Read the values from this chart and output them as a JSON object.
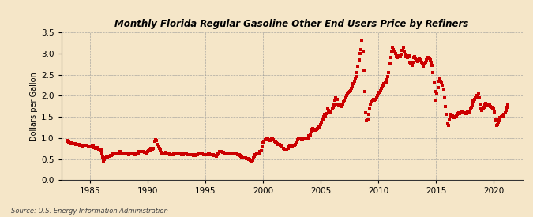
{
  "title": "Monthly Florida Regular Gasoline Other End Users Price by Refiners",
  "ylabel": "Dollars per Gallon",
  "source": "Source: U.S. Energy Information Administration",
  "background_color": "#f5e6c8",
  "plot_bg_color": "#f5e6c8",
  "line_color": "#cc0000",
  "marker": "s",
  "marker_size": 2.2,
  "xlim": [
    1982.5,
    2022.5
  ],
  "ylim": [
    0.0,
    3.5
  ],
  "yticks": [
    0.0,
    0.5,
    1.0,
    1.5,
    2.0,
    2.5,
    3.0,
    3.5
  ],
  "xticks": [
    1985,
    1990,
    1995,
    2000,
    2005,
    2010,
    2015,
    2020
  ],
  "data": [
    [
      1983.0,
      0.94
    ],
    [
      1983.08,
      0.92
    ],
    [
      1983.17,
      0.91
    ],
    [
      1983.25,
      0.89
    ],
    [
      1983.33,
      0.87
    ],
    [
      1983.42,
      0.88
    ],
    [
      1983.5,
      0.87
    ],
    [
      1983.58,
      0.86
    ],
    [
      1983.67,
      0.87
    ],
    [
      1983.75,
      0.85
    ],
    [
      1983.83,
      0.85
    ],
    [
      1983.92,
      0.84
    ],
    [
      1984.0,
      0.84
    ],
    [
      1984.08,
      0.83
    ],
    [
      1984.17,
      0.83
    ],
    [
      1984.25,
      0.82
    ],
    [
      1984.33,
      0.81
    ],
    [
      1984.42,
      0.82
    ],
    [
      1984.5,
      0.82
    ],
    [
      1984.58,
      0.83
    ],
    [
      1984.67,
      0.82
    ],
    [
      1984.75,
      0.82
    ],
    [
      1984.83,
      0.8
    ],
    [
      1984.92,
      0.79
    ],
    [
      1985.0,
      0.8
    ],
    [
      1985.08,
      0.8
    ],
    [
      1985.17,
      0.81
    ],
    [
      1985.25,
      0.81
    ],
    [
      1985.33,
      0.78
    ],
    [
      1985.42,
      0.77
    ],
    [
      1985.5,
      0.76
    ],
    [
      1985.58,
      0.77
    ],
    [
      1985.67,
      0.76
    ],
    [
      1985.75,
      0.74
    ],
    [
      1985.83,
      0.73
    ],
    [
      1985.92,
      0.72
    ],
    [
      1986.0,
      0.64
    ],
    [
      1986.08,
      0.54
    ],
    [
      1986.17,
      0.46
    ],
    [
      1986.25,
      0.5
    ],
    [
      1986.33,
      0.52
    ],
    [
      1986.42,
      0.54
    ],
    [
      1986.5,
      0.55
    ],
    [
      1986.58,
      0.56
    ],
    [
      1986.67,
      0.57
    ],
    [
      1986.75,
      0.58
    ],
    [
      1986.83,
      0.59
    ],
    [
      1986.92,
      0.6
    ],
    [
      1987.0,
      0.62
    ],
    [
      1987.08,
      0.63
    ],
    [
      1987.17,
      0.64
    ],
    [
      1987.25,
      0.65
    ],
    [
      1987.33,
      0.65
    ],
    [
      1987.42,
      0.64
    ],
    [
      1987.5,
      0.65
    ],
    [
      1987.58,
      0.67
    ],
    [
      1987.67,
      0.66
    ],
    [
      1987.75,
      0.65
    ],
    [
      1987.83,
      0.65
    ],
    [
      1987.92,
      0.64
    ],
    [
      1988.0,
      0.64
    ],
    [
      1988.08,
      0.63
    ],
    [
      1988.17,
      0.63
    ],
    [
      1988.25,
      0.62
    ],
    [
      1988.33,
      0.61
    ],
    [
      1988.42,
      0.62
    ],
    [
      1988.5,
      0.63
    ],
    [
      1988.58,
      0.63
    ],
    [
      1988.67,
      0.62
    ],
    [
      1988.75,
      0.62
    ],
    [
      1988.83,
      0.61
    ],
    [
      1988.92,
      0.6
    ],
    [
      1989.0,
      0.62
    ],
    [
      1989.08,
      0.63
    ],
    [
      1989.17,
      0.65
    ],
    [
      1989.25,
      0.68
    ],
    [
      1989.33,
      0.68
    ],
    [
      1989.42,
      0.67
    ],
    [
      1989.5,
      0.67
    ],
    [
      1989.58,
      0.67
    ],
    [
      1989.67,
      0.67
    ],
    [
      1989.75,
      0.66
    ],
    [
      1989.83,
      0.65
    ],
    [
      1989.92,
      0.64
    ],
    [
      1990.0,
      0.68
    ],
    [
      1990.08,
      0.7
    ],
    [
      1990.17,
      0.72
    ],
    [
      1990.25,
      0.75
    ],
    [
      1990.33,
      0.74
    ],
    [
      1990.42,
      0.74
    ],
    [
      1990.5,
      0.76
    ],
    [
      1990.58,
      0.93
    ],
    [
      1990.67,
      0.96
    ],
    [
      1990.75,
      0.94
    ],
    [
      1990.83,
      0.85
    ],
    [
      1990.92,
      0.8
    ],
    [
      1991.0,
      0.75
    ],
    [
      1991.08,
      0.71
    ],
    [
      1991.17,
      0.66
    ],
    [
      1991.25,
      0.65
    ],
    [
      1991.33,
      0.63
    ],
    [
      1991.42,
      0.63
    ],
    [
      1991.5,
      0.65
    ],
    [
      1991.58,
      0.66
    ],
    [
      1991.67,
      0.65
    ],
    [
      1991.75,
      0.63
    ],
    [
      1991.83,
      0.62
    ],
    [
      1991.92,
      0.6
    ],
    [
      1992.0,
      0.6
    ],
    [
      1992.08,
      0.6
    ],
    [
      1992.17,
      0.61
    ],
    [
      1992.25,
      0.62
    ],
    [
      1992.33,
      0.62
    ],
    [
      1992.42,
      0.63
    ],
    [
      1992.5,
      0.64
    ],
    [
      1992.58,
      0.64
    ],
    [
      1992.67,
      0.63
    ],
    [
      1992.75,
      0.62
    ],
    [
      1992.83,
      0.62
    ],
    [
      1992.92,
      0.61
    ],
    [
      1993.0,
      0.61
    ],
    [
      1993.08,
      0.61
    ],
    [
      1993.17,
      0.62
    ],
    [
      1993.25,
      0.63
    ],
    [
      1993.33,
      0.62
    ],
    [
      1993.42,
      0.61
    ],
    [
      1993.5,
      0.61
    ],
    [
      1993.58,
      0.61
    ],
    [
      1993.67,
      0.61
    ],
    [
      1993.75,
      0.6
    ],
    [
      1993.83,
      0.6
    ],
    [
      1993.92,
      0.6
    ],
    [
      1994.0,
      0.59
    ],
    [
      1994.08,
      0.59
    ],
    [
      1994.17,
      0.6
    ],
    [
      1994.25,
      0.61
    ],
    [
      1994.33,
      0.61
    ],
    [
      1994.42,
      0.62
    ],
    [
      1994.5,
      0.63
    ],
    [
      1994.58,
      0.63
    ],
    [
      1994.67,
      0.62
    ],
    [
      1994.75,
      0.62
    ],
    [
      1994.83,
      0.61
    ],
    [
      1994.92,
      0.6
    ],
    [
      1995.0,
      0.6
    ],
    [
      1995.08,
      0.6
    ],
    [
      1995.17,
      0.61
    ],
    [
      1995.25,
      0.63
    ],
    [
      1995.33,
      0.62
    ],
    [
      1995.42,
      0.61
    ],
    [
      1995.5,
      0.6
    ],
    [
      1995.58,
      0.6
    ],
    [
      1995.67,
      0.6
    ],
    [
      1995.75,
      0.59
    ],
    [
      1995.83,
      0.58
    ],
    [
      1995.92,
      0.57
    ],
    [
      1996.0,
      0.6
    ],
    [
      1996.08,
      0.62
    ],
    [
      1996.17,
      0.65
    ],
    [
      1996.25,
      0.68
    ],
    [
      1996.33,
      0.68
    ],
    [
      1996.42,
      0.67
    ],
    [
      1996.5,
      0.66
    ],
    [
      1996.58,
      0.66
    ],
    [
      1996.67,
      0.65
    ],
    [
      1996.75,
      0.65
    ],
    [
      1996.83,
      0.64
    ],
    [
      1996.92,
      0.63
    ],
    [
      1997.0,
      0.63
    ],
    [
      1997.08,
      0.63
    ],
    [
      1997.17,
      0.64
    ],
    [
      1997.25,
      0.65
    ],
    [
      1997.33,
      0.65
    ],
    [
      1997.42,
      0.65
    ],
    [
      1997.5,
      0.65
    ],
    [
      1997.58,
      0.63
    ],
    [
      1997.67,
      0.62
    ],
    [
      1997.75,
      0.62
    ],
    [
      1997.83,
      0.61
    ],
    [
      1997.92,
      0.6
    ],
    [
      1998.0,
      0.58
    ],
    [
      1998.08,
      0.56
    ],
    [
      1998.17,
      0.54
    ],
    [
      1998.25,
      0.53
    ],
    [
      1998.33,
      0.52
    ],
    [
      1998.42,
      0.52
    ],
    [
      1998.5,
      0.52
    ],
    [
      1998.58,
      0.51
    ],
    [
      1998.67,
      0.51
    ],
    [
      1998.75,
      0.5
    ],
    [
      1998.83,
      0.49
    ],
    [
      1998.92,
      0.47
    ],
    [
      1999.0,
      0.46
    ],
    [
      1999.08,
      0.48
    ],
    [
      1999.17,
      0.52
    ],
    [
      1999.25,
      0.57
    ],
    [
      1999.33,
      0.6
    ],
    [
      1999.42,
      0.62
    ],
    [
      1999.5,
      0.64
    ],
    [
      1999.58,
      0.65
    ],
    [
      1999.67,
      0.65
    ],
    [
      1999.75,
      0.67
    ],
    [
      1999.83,
      0.7
    ],
    [
      1999.92,
      0.8
    ],
    [
      2000.0,
      0.88
    ],
    [
      2000.08,
      0.93
    ],
    [
      2000.17,
      0.96
    ],
    [
      2000.25,
      0.97
    ],
    [
      2000.33,
      0.97
    ],
    [
      2000.42,
      0.97
    ],
    [
      2000.5,
      0.95
    ],
    [
      2000.58,
      0.94
    ],
    [
      2000.67,
      0.95
    ],
    [
      2000.75,
      0.97
    ],
    [
      2000.83,
      0.99
    ],
    [
      2000.92,
      0.95
    ],
    [
      2001.0,
      0.92
    ],
    [
      2001.08,
      0.9
    ],
    [
      2001.17,
      0.88
    ],
    [
      2001.25,
      0.86
    ],
    [
      2001.33,
      0.84
    ],
    [
      2001.42,
      0.84
    ],
    [
      2001.5,
      0.83
    ],
    [
      2001.58,
      0.83
    ],
    [
      2001.67,
      0.81
    ],
    [
      2001.75,
      0.75
    ],
    [
      2001.83,
      0.74
    ],
    [
      2001.92,
      0.73
    ],
    [
      2002.0,
      0.73
    ],
    [
      2002.08,
      0.74
    ],
    [
      2002.17,
      0.76
    ],
    [
      2002.25,
      0.8
    ],
    [
      2002.33,
      0.82
    ],
    [
      2002.42,
      0.82
    ],
    [
      2002.5,
      0.81
    ],
    [
      2002.58,
      0.82
    ],
    [
      2002.67,
      0.82
    ],
    [
      2002.75,
      0.83
    ],
    [
      2002.83,
      0.85
    ],
    [
      2002.92,
      0.88
    ],
    [
      2003.0,
      0.95
    ],
    [
      2003.08,
      1.0
    ],
    [
      2003.17,
      1.0
    ],
    [
      2003.25,
      0.98
    ],
    [
      2003.33,
      0.96
    ],
    [
      2003.42,
      0.96
    ],
    [
      2003.5,
      0.97
    ],
    [
      2003.58,
      0.98
    ],
    [
      2003.67,
      0.97
    ],
    [
      2003.75,
      0.97
    ],
    [
      2003.83,
      0.98
    ],
    [
      2003.92,
      1.0
    ],
    [
      2004.0,
      1.05
    ],
    [
      2004.08,
      1.08
    ],
    [
      2004.17,
      1.15
    ],
    [
      2004.25,
      1.2
    ],
    [
      2004.33,
      1.22
    ],
    [
      2004.42,
      1.2
    ],
    [
      2004.5,
      1.18
    ],
    [
      2004.58,
      1.18
    ],
    [
      2004.67,
      1.2
    ],
    [
      2004.75,
      1.22
    ],
    [
      2004.83,
      1.25
    ],
    [
      2004.92,
      1.28
    ],
    [
      2005.0,
      1.32
    ],
    [
      2005.08,
      1.38
    ],
    [
      2005.17,
      1.45
    ],
    [
      2005.25,
      1.5
    ],
    [
      2005.33,
      1.55
    ],
    [
      2005.42,
      1.52
    ],
    [
      2005.5,
      1.58
    ],
    [
      2005.58,
      1.7
    ],
    [
      2005.67,
      1.65
    ],
    [
      2005.75,
      1.62
    ],
    [
      2005.83,
      1.6
    ],
    [
      2005.92,
      1.62
    ],
    [
      2006.0,
      1.68
    ],
    [
      2006.08,
      1.72
    ],
    [
      2006.17,
      1.78
    ],
    [
      2006.25,
      1.9
    ],
    [
      2006.33,
      1.95
    ],
    [
      2006.42,
      1.92
    ],
    [
      2006.5,
      1.8
    ],
    [
      2006.58,
      1.78
    ],
    [
      2006.67,
      1.78
    ],
    [
      2006.75,
      1.75
    ],
    [
      2006.83,
      1.75
    ],
    [
      2006.92,
      1.8
    ],
    [
      2007.0,
      1.85
    ],
    [
      2007.08,
      1.9
    ],
    [
      2007.17,
      1.95
    ],
    [
      2007.25,
      2.0
    ],
    [
      2007.33,
      2.05
    ],
    [
      2007.42,
      2.08
    ],
    [
      2007.5,
      2.1
    ],
    [
      2007.58,
      2.12
    ],
    [
      2007.67,
      2.18
    ],
    [
      2007.75,
      2.22
    ],
    [
      2007.83,
      2.28
    ],
    [
      2007.92,
      2.35
    ],
    [
      2008.0,
      2.4
    ],
    [
      2008.08,
      2.45
    ],
    [
      2008.17,
      2.55
    ],
    [
      2008.25,
      2.7
    ],
    [
      2008.33,
      2.85
    ],
    [
      2008.42,
      3.0
    ],
    [
      2008.5,
      3.1
    ],
    [
      2008.58,
      3.32
    ],
    [
      2008.67,
      3.05
    ],
    [
      2008.75,
      2.6
    ],
    [
      2008.83,
      2.1
    ],
    [
      2008.92,
      1.6
    ],
    [
      2009.0,
      1.4
    ],
    [
      2009.08,
      1.45
    ],
    [
      2009.17,
      1.55
    ],
    [
      2009.25,
      1.7
    ],
    [
      2009.33,
      1.8
    ],
    [
      2009.42,
      1.85
    ],
    [
      2009.5,
      1.9
    ],
    [
      2009.58,
      1.92
    ],
    [
      2009.67,
      1.9
    ],
    [
      2009.75,
      1.92
    ],
    [
      2009.83,
      1.95
    ],
    [
      2009.92,
      2.0
    ],
    [
      2010.0,
      2.05
    ],
    [
      2010.08,
      2.08
    ],
    [
      2010.17,
      2.12
    ],
    [
      2010.25,
      2.18
    ],
    [
      2010.33,
      2.22
    ],
    [
      2010.42,
      2.25
    ],
    [
      2010.5,
      2.28
    ],
    [
      2010.58,
      2.3
    ],
    [
      2010.67,
      2.32
    ],
    [
      2010.75,
      2.38
    ],
    [
      2010.83,
      2.45
    ],
    [
      2010.92,
      2.55
    ],
    [
      2011.0,
      2.75
    ],
    [
      2011.08,
      2.9
    ],
    [
      2011.17,
      3.05
    ],
    [
      2011.25,
      3.15
    ],
    [
      2011.33,
      3.1
    ],
    [
      2011.42,
      3.05
    ],
    [
      2011.5,
      3.0
    ],
    [
      2011.58,
      2.95
    ],
    [
      2011.67,
      2.9
    ],
    [
      2011.75,
      2.92
    ],
    [
      2011.83,
      2.95
    ],
    [
      2011.92,
      2.95
    ],
    [
      2012.0,
      2.98
    ],
    [
      2012.08,
      3.08
    ],
    [
      2012.17,
      3.15
    ],
    [
      2012.25,
      3.05
    ],
    [
      2012.33,
      2.98
    ],
    [
      2012.42,
      2.95
    ],
    [
      2012.5,
      2.9
    ],
    [
      2012.58,
      2.92
    ],
    [
      2012.67,
      2.95
    ],
    [
      2012.75,
      2.8
    ],
    [
      2012.83,
      2.78
    ],
    [
      2012.92,
      2.72
    ],
    [
      2013.0,
      2.8
    ],
    [
      2013.08,
      2.9
    ],
    [
      2013.17,
      2.92
    ],
    [
      2013.25,
      2.88
    ],
    [
      2013.33,
      2.85
    ],
    [
      2013.42,
      2.82
    ],
    [
      2013.5,
      2.85
    ],
    [
      2013.58,
      2.88
    ],
    [
      2013.67,
      2.85
    ],
    [
      2013.75,
      2.8
    ],
    [
      2013.83,
      2.75
    ],
    [
      2013.92,
      2.7
    ],
    [
      2014.0,
      2.75
    ],
    [
      2014.08,
      2.8
    ],
    [
      2014.17,
      2.85
    ],
    [
      2014.25,
      2.9
    ],
    [
      2014.33,
      2.9
    ],
    [
      2014.42,
      2.88
    ],
    [
      2014.5,
      2.85
    ],
    [
      2014.58,
      2.8
    ],
    [
      2014.67,
      2.72
    ],
    [
      2014.75,
      2.55
    ],
    [
      2014.83,
      2.3
    ],
    [
      2014.92,
      2.1
    ],
    [
      2015.0,
      1.9
    ],
    [
      2015.08,
      2.05
    ],
    [
      2015.17,
      2.2
    ],
    [
      2015.25,
      2.35
    ],
    [
      2015.33,
      2.4
    ],
    [
      2015.42,
      2.35
    ],
    [
      2015.5,
      2.3
    ],
    [
      2015.58,
      2.25
    ],
    [
      2015.67,
      2.15
    ],
    [
      2015.75,
      1.95
    ],
    [
      2015.83,
      1.75
    ],
    [
      2015.92,
      1.55
    ],
    [
      2016.0,
      1.35
    ],
    [
      2016.08,
      1.3
    ],
    [
      2016.17,
      1.45
    ],
    [
      2016.25,
      1.52
    ],
    [
      2016.33,
      1.55
    ],
    [
      2016.42,
      1.52
    ],
    [
      2016.5,
      1.5
    ],
    [
      2016.58,
      1.48
    ],
    [
      2016.67,
      1.5
    ],
    [
      2016.75,
      1.52
    ],
    [
      2016.83,
      1.55
    ],
    [
      2016.92,
      1.58
    ],
    [
      2017.0,
      1.6
    ],
    [
      2017.08,
      1.58
    ],
    [
      2017.17,
      1.6
    ],
    [
      2017.25,
      1.62
    ],
    [
      2017.33,
      1.62
    ],
    [
      2017.42,
      1.6
    ],
    [
      2017.5,
      1.58
    ],
    [
      2017.58,
      1.6
    ],
    [
      2017.67,
      1.58
    ],
    [
      2017.75,
      1.62
    ],
    [
      2017.83,
      1.6
    ],
    [
      2017.92,
      1.62
    ],
    [
      2018.0,
      1.68
    ],
    [
      2018.08,
      1.72
    ],
    [
      2018.17,
      1.78
    ],
    [
      2018.25,
      1.88
    ],
    [
      2018.33,
      1.92
    ],
    [
      2018.42,
      1.95
    ],
    [
      2018.5,
      1.95
    ],
    [
      2018.58,
      2.0
    ],
    [
      2018.67,
      2.05
    ],
    [
      2018.75,
      1.95
    ],
    [
      2018.83,
      1.8
    ],
    [
      2018.92,
      1.68
    ],
    [
      2019.0,
      1.65
    ],
    [
      2019.08,
      1.68
    ],
    [
      2019.17,
      1.72
    ],
    [
      2019.25,
      1.8
    ],
    [
      2019.33,
      1.82
    ],
    [
      2019.42,
      1.8
    ],
    [
      2019.5,
      1.78
    ],
    [
      2019.58,
      1.78
    ],
    [
      2019.67,
      1.78
    ],
    [
      2019.75,
      1.75
    ],
    [
      2019.83,
      1.72
    ],
    [
      2019.92,
      1.68
    ],
    [
      2020.0,
      1.7
    ],
    [
      2020.08,
      1.62
    ],
    [
      2020.17,
      1.42
    ],
    [
      2020.25,
      1.3
    ],
    [
      2020.33,
      1.32
    ],
    [
      2020.42,
      1.38
    ],
    [
      2020.5,
      1.42
    ],
    [
      2020.58,
      1.48
    ],
    [
      2020.67,
      1.5
    ],
    [
      2020.75,
      1.52
    ],
    [
      2020.83,
      1.52
    ],
    [
      2020.92,
      1.55
    ],
    [
      2021.0,
      1.6
    ],
    [
      2021.08,
      1.65
    ],
    [
      2021.17,
      1.72
    ],
    [
      2021.25,
      1.8
    ]
  ]
}
